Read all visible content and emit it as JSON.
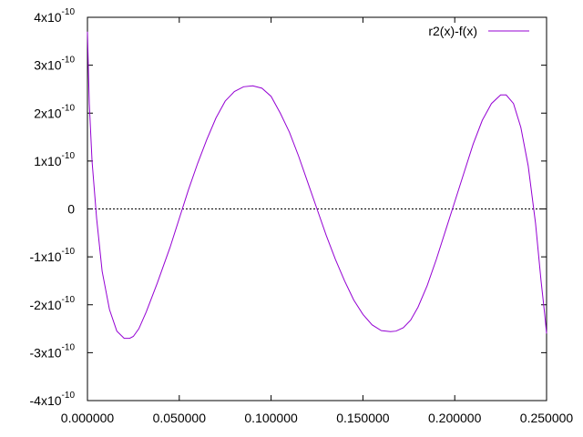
{
  "chart_data": {
    "type": "line",
    "title": "",
    "xlabel": "",
    "ylabel": "",
    "xlim": [
      0.0,
      0.25
    ],
    "ylim": [
      -4e-10,
      4e-10
    ],
    "x_ticks": [
      0.0,
      0.05,
      0.1,
      0.15,
      0.2,
      0.25
    ],
    "x_tick_labels": [
      "0.000000",
      "0.050000",
      "0.100000",
      "0.150000",
      "0.200000",
      "0.250000"
    ],
    "y_ticks": [
      4e-10,
      3e-10,
      2e-10,
      1e-10,
      0,
      -1e-10,
      -2e-10,
      -3e-10,
      -4e-10
    ],
    "y_tick_labels": [
      {
        "base": "4x10",
        "exp": "-10"
      },
      {
        "base": "3x10",
        "exp": "-10"
      },
      {
        "base": "2x10",
        "exp": "-10"
      },
      {
        "base": "1x10",
        "exp": "-10"
      },
      {
        "base": "0",
        "exp": ""
      },
      {
        "base": "-1x10",
        "exp": "-10"
      },
      {
        "base": "-2x10",
        "exp": "-10"
      },
      {
        "base": "-3x10",
        "exp": "-10"
      },
      {
        "base": "-4x10",
        "exp": "-10"
      }
    ],
    "grid": false,
    "zero_line": true,
    "legend_position": "top-right",
    "series": [
      {
        "name": "r2(x)-f(x)",
        "color": "#9400d3",
        "x": [
          0.0,
          0.001,
          0.0025,
          0.005,
          0.008,
          0.012,
          0.016,
          0.02,
          0.023,
          0.025,
          0.028,
          0.032,
          0.038,
          0.045,
          0.05,
          0.055,
          0.06,
          0.065,
          0.07,
          0.075,
          0.08,
          0.085,
          0.09,
          0.095,
          0.1,
          0.105,
          0.11,
          0.115,
          0.12,
          0.125,
          0.13,
          0.135,
          0.14,
          0.145,
          0.15,
          0.155,
          0.16,
          0.165,
          0.168,
          0.172,
          0.176,
          0.18,
          0.185,
          0.19,
          0.195,
          0.2,
          0.205,
          0.21,
          0.215,
          0.22,
          0.225,
          0.228,
          0.232,
          0.236,
          0.24,
          0.244,
          0.247,
          0.249,
          0.25
        ],
        "y": [
          3.7e-10,
          2.2e-10,
          1e-10,
          -2e-11,
          -1.3e-10,
          -2.1e-10,
          -2.55e-10,
          -2.7e-10,
          -2.7e-10,
          -2.66e-10,
          -2.5e-10,
          -2.15e-10,
          -1.55e-10,
          -8e-11,
          -2e-11,
          4e-11,
          9.5e-11,
          1.45e-10,
          1.9e-10,
          2.25e-10,
          2.45e-10,
          2.55e-10,
          2.57e-10,
          2.52e-10,
          2.35e-10,
          2e-10,
          1.6e-10,
          1.1e-10,
          5.5e-11,
          0.0,
          -5.5e-11,
          -1.05e-10,
          -1.5e-10,
          -1.9e-10,
          -2.2e-10,
          -2.42e-10,
          -2.54e-10,
          -2.56e-10,
          -2.55e-10,
          -2.48e-10,
          -2.32e-10,
          -2.05e-10,
          -1.6e-10,
          -1.05e-10,
          -4.5e-11,
          1.5e-11,
          7.5e-11,
          1.35e-10,
          1.85e-10,
          2.2e-10,
          2.38e-10,
          2.38e-10,
          2.2e-10,
          1.7e-10,
          9e-11,
          -3e-11,
          -1.5e-10,
          -2.2e-10,
          -2.6e-10
        ]
      }
    ]
  }
}
